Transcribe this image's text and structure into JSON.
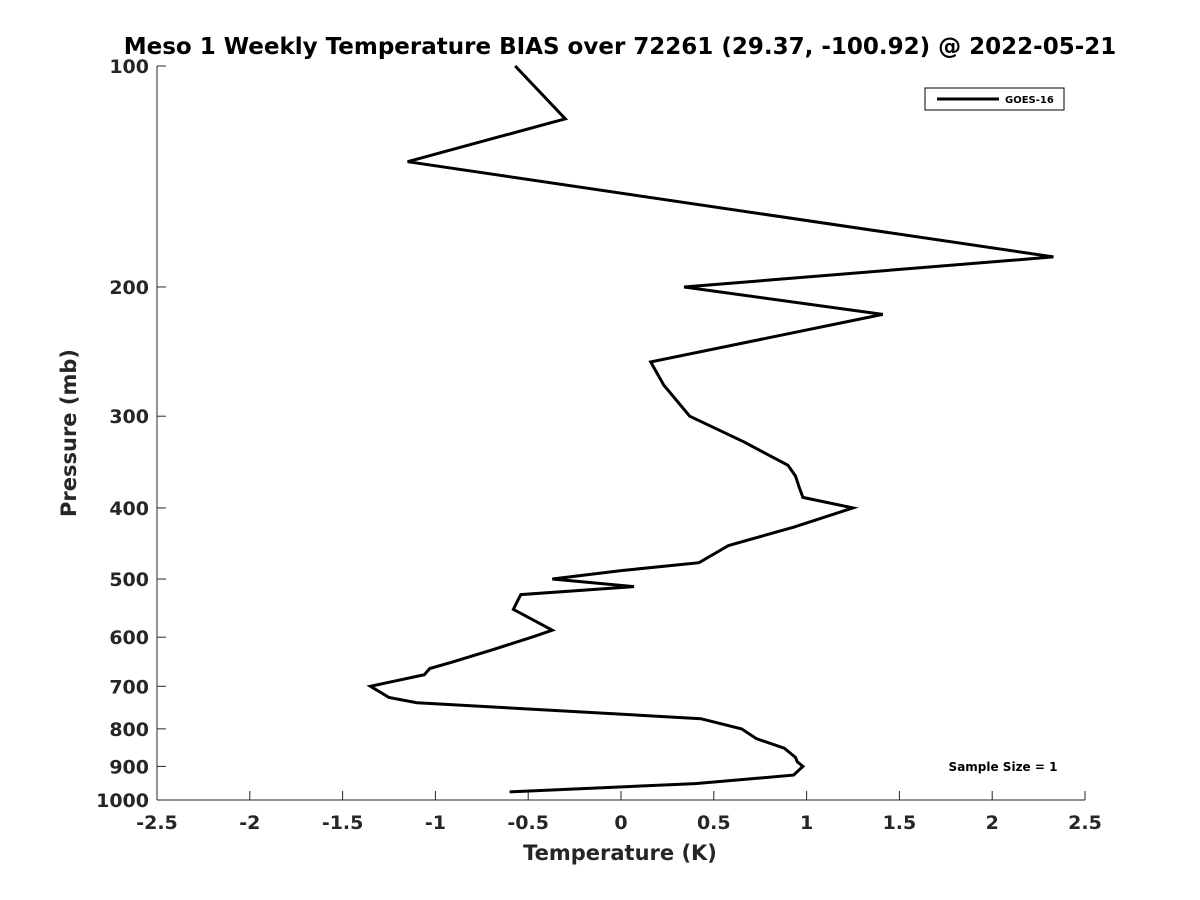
{
  "chart_data": {
    "type": "line",
    "title": "Meso 1 Weekly Temperature BIAS over 72261 (29.37, -100.92) @ 2022-05-21",
    "xlabel": "Temperature (K)",
    "ylabel": "Pressure (mb)",
    "xlim": [
      -2.5,
      2.5
    ],
    "ylim": [
      100,
      1000
    ],
    "y_scale": "log",
    "y_reversed": true,
    "x_ticks": [
      -2.5,
      -2,
      -1.5,
      -1,
      -0.5,
      0,
      0.5,
      1,
      1.5,
      2,
      2.5
    ],
    "x_tick_labels": [
      "-2.5",
      "-2",
      "-1.5",
      "-1",
      "-0.5",
      "0",
      "0.5",
      "1",
      "1.5",
      "2",
      "2.5"
    ],
    "y_ticks": [
      100,
      200,
      300,
      400,
      500,
      600,
      700,
      800,
      900,
      1000
    ],
    "y_tick_labels": [
      "100",
      "200",
      "300",
      "400",
      "500",
      "600",
      "700",
      "800",
      "900",
      "1000"
    ],
    "grid": false,
    "legend_position": "top-right",
    "series": [
      {
        "name": "GOES-16",
        "color": "#000000",
        "points": [
          {
            "x": -0.57,
            "y": 100
          },
          {
            "x": -0.3,
            "y": 118
          },
          {
            "x": -1.15,
            "y": 135
          },
          {
            "x": 2.33,
            "y": 182
          },
          {
            "x": 0.34,
            "y": 200
          },
          {
            "x": 1.41,
            "y": 218
          },
          {
            "x": 0.16,
            "y": 253
          },
          {
            "x": 0.23,
            "y": 272
          },
          {
            "x": 0.37,
            "y": 300
          },
          {
            "x": 0.66,
            "y": 325
          },
          {
            "x": 0.9,
            "y": 350
          },
          {
            "x": 0.94,
            "y": 362
          },
          {
            "x": 0.96,
            "y": 375
          },
          {
            "x": 0.98,
            "y": 387
          },
          {
            "x": 1.25,
            "y": 400
          },
          {
            "x": 0.93,
            "y": 425
          },
          {
            "x": 0.58,
            "y": 450
          },
          {
            "x": 0.42,
            "y": 475
          },
          {
            "x": 0.0,
            "y": 487
          },
          {
            "x": -0.37,
            "y": 500
          },
          {
            "x": 0.07,
            "y": 512
          },
          {
            "x": -0.54,
            "y": 525
          },
          {
            "x": -0.56,
            "y": 537
          },
          {
            "x": -0.58,
            "y": 550
          },
          {
            "x": -0.37,
            "y": 587
          },
          {
            "x": -0.48,
            "y": 600
          },
          {
            "x": -0.7,
            "y": 625
          },
          {
            "x": -0.92,
            "y": 650
          },
          {
            "x": -1.03,
            "y": 662
          },
          {
            "x": -1.06,
            "y": 675
          },
          {
            "x": -1.35,
            "y": 700
          },
          {
            "x": -1.25,
            "y": 725
          },
          {
            "x": -1.1,
            "y": 737
          },
          {
            "x": 0.43,
            "y": 775
          },
          {
            "x": 0.65,
            "y": 800
          },
          {
            "x": 0.73,
            "y": 825
          },
          {
            "x": 0.88,
            "y": 850
          },
          {
            "x": 0.94,
            "y": 875
          },
          {
            "x": 0.95,
            "y": 887
          },
          {
            "x": 0.98,
            "y": 900
          },
          {
            "x": 0.93,
            "y": 925
          },
          {
            "x": 0.4,
            "y": 950
          },
          {
            "x": -0.6,
            "y": 975
          }
        ]
      }
    ],
    "annotations": [
      "Sample Size = 1"
    ]
  }
}
